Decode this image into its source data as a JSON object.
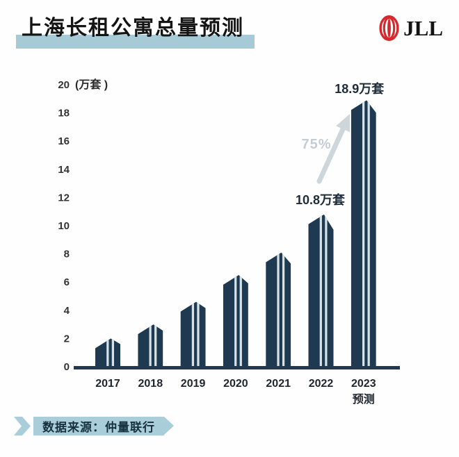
{
  "header": {
    "title": "上海长租公寓总量预测",
    "logo_text": "JLL",
    "brand_red": "#d7282c",
    "highlight_color": "#a6cbd7"
  },
  "chart_data": {
    "type": "bar",
    "title": "上海长租公寓总量预测",
    "unit_label": "(万套 )",
    "categories": [
      "2017",
      "2018",
      "2019",
      "2020",
      "2021",
      "2022",
      "2023"
    ],
    "last_category_sub": "预测",
    "values": [
      2.0,
      3.0,
      4.6,
      6.5,
      8.1,
      10.8,
      18.9
    ],
    "y_ticks": [
      0,
      2,
      4,
      6,
      8,
      10,
      12,
      14,
      16,
      18,
      20
    ],
    "ylim": [
      0,
      20
    ],
    "grid": false,
    "legend": "none",
    "bar_color": "#1f3a50",
    "stripe_color": "#d5e2e7",
    "axis_color": "#1f3a50",
    "annotations": {
      "bar_2022_label": "10.8万套",
      "bar_2023_label": "18.9万套",
      "growth_label": "75%",
      "growth_color": "#c3cdd5",
      "arrow_color": "#ccd6db"
    }
  },
  "footer": {
    "source_text": "数据来源：仲量联行",
    "banner_color": "#a9ced9"
  }
}
